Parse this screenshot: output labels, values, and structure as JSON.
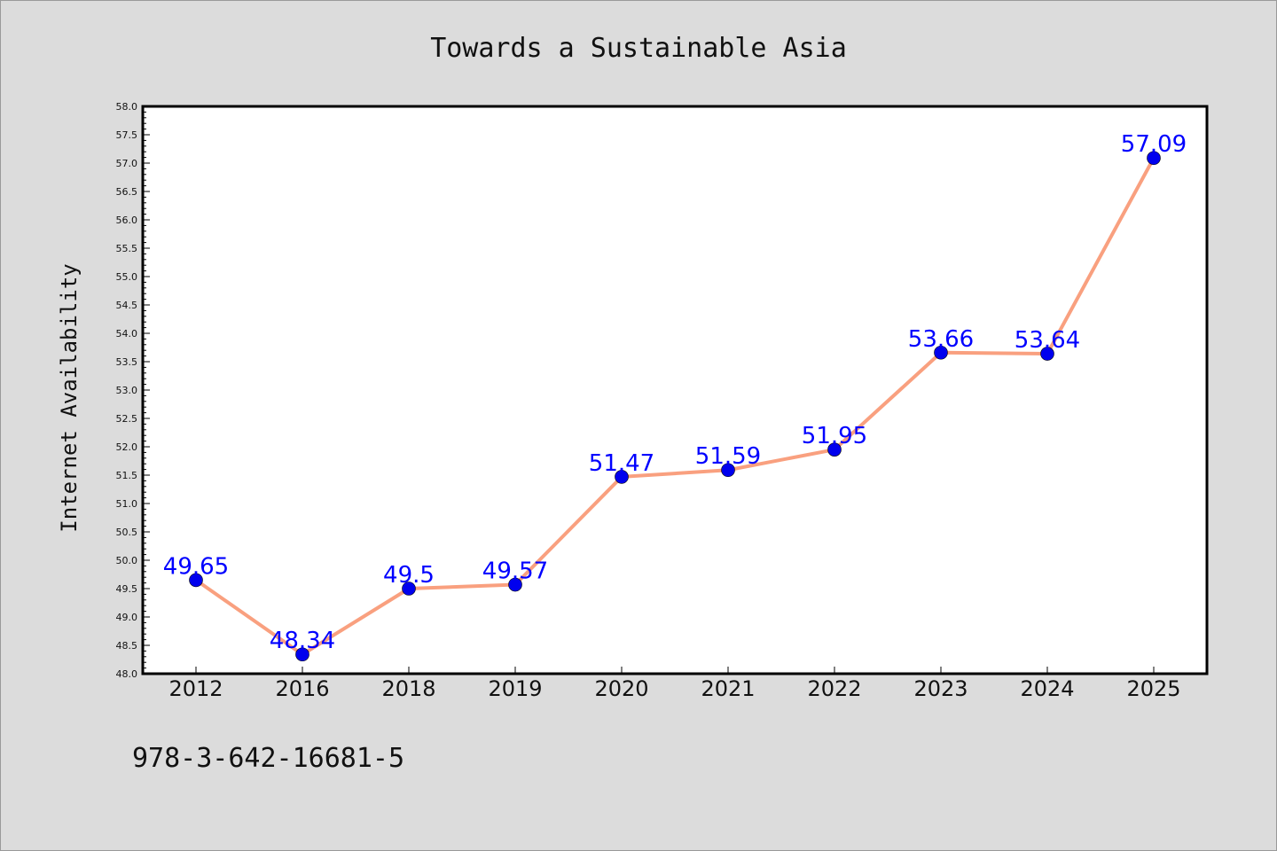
{
  "chart_data": {
    "type": "line",
    "title": "Towards a Sustainable Asia",
    "xlabel": "",
    "ylabel": "Internet Availability",
    "categories": [
      "2012",
      "2016",
      "2018",
      "2019",
      "2020",
      "2021",
      "2022",
      "2023",
      "2024",
      "2025"
    ],
    "series": [
      {
        "values": [
          49.65,
          48.34,
          49.5,
          49.57,
          51.47,
          51.59,
          51.95,
          53.66,
          53.64,
          57.09
        ],
        "data_labels": [
          "49.65",
          "48.34",
          "49.5",
          "49.57",
          "51.47",
          "51.59",
          "51.95",
          "53.66",
          "53.64",
          "57.09"
        ],
        "line_color": "#f9a07f",
        "marker_color": "#0000ee",
        "label_color": "#0000ff"
      }
    ],
    "ylim": [
      48.0,
      58.0
    ],
    "y_ticks": [
      "48.0",
      "48.5",
      "49.0",
      "49.5",
      "50.0",
      "50.5",
      "51.0",
      "51.5",
      "52.0",
      "52.5",
      "53.0",
      "53.5",
      "54.0",
      "54.5",
      "55.0",
      "55.5",
      "56.0",
      "56.5",
      "57.0",
      "57.5",
      "58.0"
    ],
    "grid": false,
    "legend": "none"
  },
  "footer": {
    "isbn": "978-3-642-16681-5"
  },
  "colors": {
    "background": "#dcdcdc",
    "plot_background": "#ffffff"
  }
}
